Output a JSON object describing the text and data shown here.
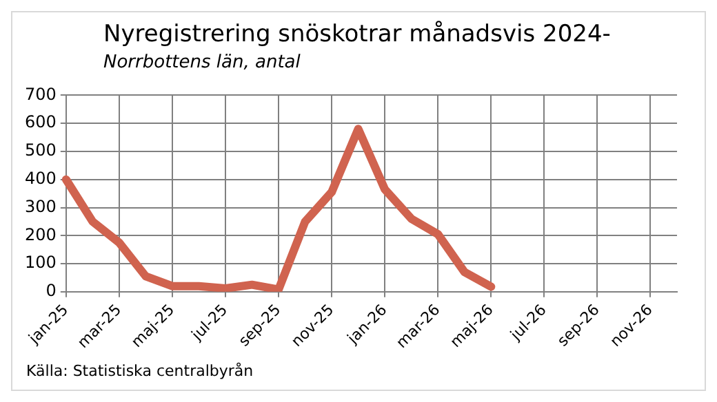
{
  "chart_data": {
    "type": "line",
    "title": "Nyregistrering snöskotrar månadsvis 2024-",
    "subtitle": "Norrbottens län, antal",
    "annotations": [
      "Källa: Statistiska centralbyrån"
    ],
    "categories": [
      "jan-25",
      null,
      "mar-25",
      null,
      "maj-25",
      null,
      "jul-25",
      null,
      "sep-25",
      null,
      "nov-25",
      null,
      "jan-26",
      null,
      "mar-26",
      null,
      "maj-26",
      null,
      "jul-26",
      null,
      "sep-26",
      null,
      "nov-26",
      null
    ],
    "series": [
      {
        "color": "#d0634f",
        "values": [
          400,
          250,
          175,
          55,
          20,
          20,
          12,
          25,
          8,
          250,
          355,
          580,
          365,
          260,
          205,
          70,
          18,
          null,
          null,
          null,
          null,
          null,
          null,
          null
        ]
      }
    ],
    "ylim": [
      0,
      700
    ],
    "yticks": [
      0,
      100,
      200,
      300,
      400,
      500,
      600,
      700
    ],
    "grid": true,
    "legend": false,
    "marker": "none",
    "line_style": "solid"
  }
}
